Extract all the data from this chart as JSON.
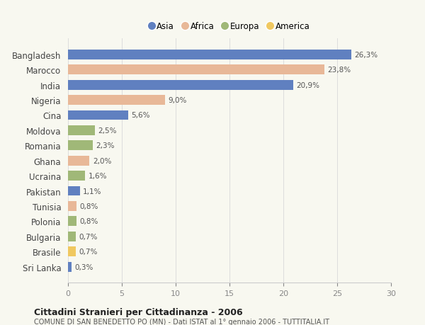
{
  "countries": [
    "Bangladesh",
    "Marocco",
    "India",
    "Nigeria",
    "Cina",
    "Moldova",
    "Romania",
    "Ghana",
    "Ucraina",
    "Pakistan",
    "Tunisia",
    "Polonia",
    "Bulgaria",
    "Brasile",
    "Sri Lanka"
  ],
  "values": [
    26.3,
    23.8,
    20.9,
    9.0,
    5.6,
    2.5,
    2.3,
    2.0,
    1.6,
    1.1,
    0.8,
    0.8,
    0.7,
    0.7,
    0.3
  ],
  "labels": [
    "26,3%",
    "23,8%",
    "20,9%",
    "9,0%",
    "5,6%",
    "2,5%",
    "2,3%",
    "2,0%",
    "1,6%",
    "1,1%",
    "0,8%",
    "0,8%",
    "0,7%",
    "0,7%",
    "0,3%"
  ],
  "continents": [
    "Asia",
    "Africa",
    "Asia",
    "Africa",
    "Asia",
    "Europa",
    "Europa",
    "Africa",
    "Europa",
    "Asia",
    "Africa",
    "Europa",
    "Europa",
    "America",
    "Asia"
  ],
  "colors": {
    "Asia": "#6080c0",
    "Africa": "#e8b898",
    "Europa": "#a0b878",
    "America": "#f0c860"
  },
  "xlim": [
    0,
    30
  ],
  "xticks": [
    0,
    5,
    10,
    15,
    20,
    25,
    30
  ],
  "title": "Cittadini Stranieri per Cittadinanza - 2006",
  "subtitle": "COMUNE DI SAN BENEDETTO PO (MN) - Dati ISTAT al 1° gennaio 2006 - TUTTITALIA.IT",
  "bg_color": "#f8f8f0",
  "bar_height": 0.65
}
